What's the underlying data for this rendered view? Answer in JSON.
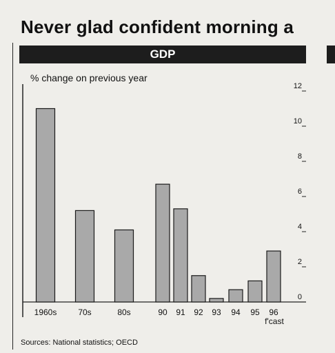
{
  "headline": "Never glad confident morning a",
  "chart_data": {
    "type": "bar",
    "title": "GDP",
    "subtitle": "% change on previous year",
    "categories": [
      "1960s",
      "70s",
      "80s",
      "90",
      "91",
      "92",
      "93",
      "94",
      "95",
      "96 f'cast"
    ],
    "x_tick_labels": [
      "1960s",
      "70s",
      "80s",
      "90",
      "91",
      "92",
      "93",
      "94",
      "95",
      "96"
    ],
    "x_tick_sublabel": "f'cast",
    "values": [
      11.0,
      5.2,
      4.1,
      6.7,
      5.3,
      1.5,
      0.2,
      0.7,
      1.2,
      2.9
    ],
    "ylim": [
      0,
      12
    ],
    "yticks": [
      0,
      2,
      4,
      6,
      8,
      10,
      12
    ],
    "grid": false,
    "bar_color": "#a9a9a9"
  },
  "source": "Sources: National statistics; OECD"
}
